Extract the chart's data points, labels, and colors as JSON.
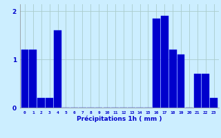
{
  "hours": [
    0,
    1,
    2,
    3,
    4,
    5,
    6,
    7,
    8,
    9,
    10,
    11,
    12,
    13,
    14,
    15,
    16,
    17,
    18,
    19,
    20,
    21,
    22,
    23
  ],
  "values": [
    1.2,
    1.2,
    0.2,
    0.2,
    1.6,
    0.0,
    0.0,
    0.0,
    0.0,
    0.0,
    0.0,
    0.0,
    0.0,
    0.0,
    0.0,
    0.0,
    1.85,
    1.9,
    1.2,
    1.1,
    0.0,
    0.7,
    0.7,
    0.2
  ],
  "bar_color": "#0000cc",
  "bar_edge_color": "#0000ee",
  "background_color": "#cceeff",
  "grid_color": "#aacccc",
  "xlabel": "Précipitations 1h ( mm )",
  "xlabel_color": "#0000cc",
  "tick_color": "#0000cc",
  "ylim": [
    0,
    2.15
  ],
  "yticks": [
    0,
    1,
    2
  ],
  "bar_width": 0.9
}
